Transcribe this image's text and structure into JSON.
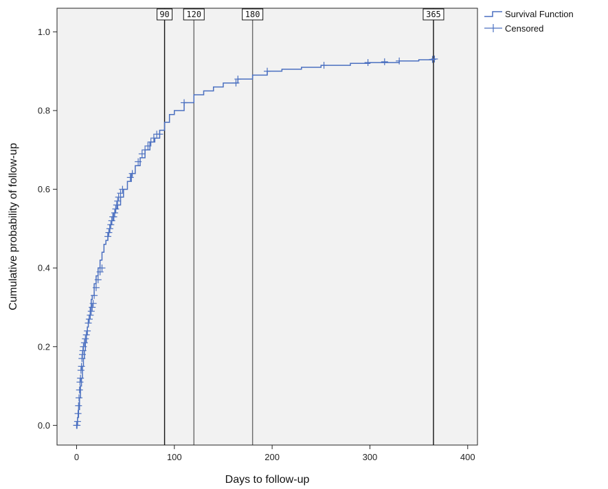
{
  "chart_data": {
    "type": "line",
    "title": "",
    "xlabel": "Days to follow-up",
    "ylabel": "Cumulative probability of follow-up",
    "xlim": [
      -20,
      410
    ],
    "ylim": [
      -0.05,
      1.06
    ],
    "xticks": [
      0,
      100,
      200,
      300,
      400
    ],
    "yticks": [
      0.0,
      0.2,
      0.4,
      0.6,
      0.8,
      1.0
    ],
    "xtick_labels": [
      "0",
      "100",
      "200",
      "300",
      "400"
    ],
    "ytick_labels": [
      "0.0",
      "0.2",
      "0.4",
      "0.6",
      "0.8",
      "1.0"
    ],
    "grid": false,
    "legend_position": "top-right-outside",
    "colors": {
      "series": "#4a6fc0",
      "plot_background": "#f2f2f2",
      "reference_line": "#111111"
    },
    "reference_lines": [
      {
        "x": 90,
        "label": "90"
      },
      {
        "x": 120,
        "label": "120"
      },
      {
        "x": 180,
        "label": "180"
      },
      {
        "x": 365,
        "label": "365"
      }
    ],
    "series": [
      {
        "name": "Survival Function",
        "kind": "step",
        "x": [
          0,
          1,
          2,
          3,
          4,
          5,
          6,
          7,
          8,
          9,
          10,
          11,
          12,
          13,
          14,
          15,
          16,
          18,
          20,
          22,
          24,
          26,
          28,
          30,
          32,
          34,
          36,
          38,
          40,
          42,
          45,
          48,
          52,
          56,
          60,
          65,
          70,
          75,
          80,
          85,
          90,
          95,
          100,
          110,
          120,
          130,
          140,
          150,
          165,
          180,
          195,
          210,
          230,
          250,
          280,
          300,
          330,
          350,
          365
        ],
        "y": [
          0.0,
          0.02,
          0.04,
          0.07,
          0.1,
          0.12,
          0.15,
          0.17,
          0.19,
          0.21,
          0.23,
          0.25,
          0.27,
          0.28,
          0.3,
          0.32,
          0.33,
          0.36,
          0.38,
          0.4,
          0.42,
          0.44,
          0.46,
          0.47,
          0.49,
          0.51,
          0.52,
          0.54,
          0.55,
          0.56,
          0.58,
          0.6,
          0.62,
          0.64,
          0.66,
          0.68,
          0.7,
          0.72,
          0.73,
          0.75,
          0.77,
          0.79,
          0.8,
          0.82,
          0.84,
          0.85,
          0.86,
          0.87,
          0.88,
          0.89,
          0.9,
          0.905,
          0.91,
          0.915,
          0.92,
          0.922,
          0.926,
          0.929,
          0.93
        ]
      },
      {
        "name": "Censored",
        "kind": "markers",
        "x": [
          0,
          0.5,
          1,
          1.5,
          2,
          2.5,
          3,
          3.5,
          4,
          4.5,
          5,
          5.5,
          6,
          6.5,
          7,
          8,
          9,
          10,
          11,
          12,
          13,
          14,
          15,
          16,
          17,
          18,
          20,
          22,
          24,
          26,
          32,
          33,
          34,
          35,
          36,
          37,
          38,
          39,
          40,
          41,
          42,
          43,
          45,
          47,
          55,
          57,
          63,
          67,
          70,
          73,
          76,
          79,
          82,
          85,
          110,
          163,
          165,
          195,
          253,
          298,
          315,
          330,
          364,
          366
        ],
        "y": [
          0.0,
          0.0,
          0.01,
          0.03,
          0.05,
          0.07,
          0.09,
          0.11,
          0.12,
          0.14,
          0.15,
          0.17,
          0.18,
          0.19,
          0.2,
          0.21,
          0.22,
          0.23,
          0.24,
          0.26,
          0.27,
          0.28,
          0.29,
          0.3,
          0.31,
          0.33,
          0.35,
          0.37,
          0.39,
          0.4,
          0.48,
          0.49,
          0.5,
          0.51,
          0.52,
          0.53,
          0.53,
          0.54,
          0.55,
          0.56,
          0.57,
          0.58,
          0.59,
          0.6,
          0.63,
          0.64,
          0.67,
          0.69,
          0.7,
          0.71,
          0.72,
          0.73,
          0.74,
          0.74,
          0.82,
          0.87,
          0.88,
          0.9,
          0.915,
          0.922,
          0.924,
          0.926,
          0.93,
          0.931
        ]
      }
    ]
  }
}
